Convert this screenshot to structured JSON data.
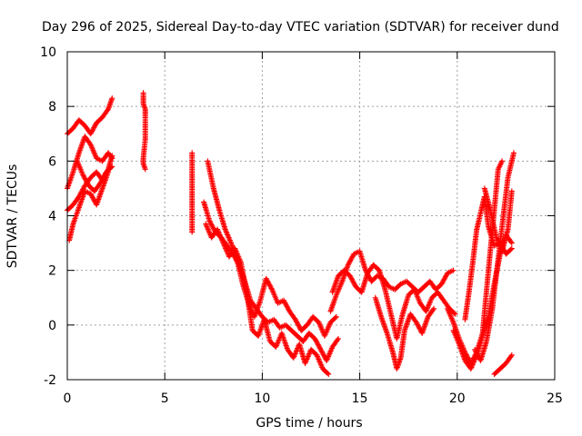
{
  "chart_data": {
    "type": "scatter",
    "title": "Day 296 of 2025, Sidereal Day-to-day VTEC variation (SDTVAR) for receiver dund",
    "xlabel": "GPS time / hours",
    "ylabel": "SDTVAR / TECUs",
    "xlim": [
      0,
      25
    ],
    "ylim": [
      -2,
      10
    ],
    "xticks": [
      0,
      5,
      10,
      15,
      20,
      25
    ],
    "yticks": [
      -2,
      0,
      2,
      4,
      6,
      8,
      10
    ],
    "xtick_labels": [
      "0",
      "5",
      "10",
      "15",
      "20",
      "25"
    ],
    "ytick_labels": [
      "-2",
      "0",
      "2",
      "4",
      "6",
      "8",
      "10"
    ],
    "grid": true,
    "marker": "+",
    "color": "#ff0000",
    "series": [
      {
        "name": "SDTVAR",
        "segments": [
          {
            "x": [
              0.0,
              0.3,
              0.6,
              0.9,
              1.2,
              1.5,
              1.8,
              2.1,
              2.3
            ],
            "y": [
              7.0,
              7.2,
              7.5,
              7.3,
              7.0,
              7.4,
              7.6,
              7.9,
              8.3
            ]
          },
          {
            "x": [
              0.0,
              0.3,
              0.6,
              0.9,
              1.2,
              1.5,
              1.8,
              2.1,
              2.3
            ],
            "y": [
              5.0,
              5.6,
              6.3,
              6.9,
              6.6,
              6.1,
              6.0,
              6.3,
              6.1
            ]
          },
          {
            "x": [
              0.0,
              0.3,
              0.6,
              0.9,
              1.2,
              1.5,
              1.8,
              2.1,
              2.3
            ],
            "y": [
              4.2,
              4.4,
              4.7,
              5.1,
              5.4,
              5.6,
              5.3,
              5.7,
              6.2
            ]
          },
          {
            "x": [
              0.1,
              0.3,
              0.6,
              0.9,
              1.2,
              1.5,
              1.8,
              2.1
            ],
            "y": [
              3.1,
              3.7,
              4.3,
              4.9,
              4.8,
              4.4,
              5.0,
              5.6
            ]
          },
          {
            "x": [
              0.5,
              0.8,
              1.1,
              1.4,
              1.7,
              2.0,
              2.3
            ],
            "y": [
              6.0,
              5.5,
              5.1,
              4.9,
              5.2,
              5.6,
              5.8
            ]
          },
          {
            "x": [
              3.9,
              3.9,
              3.9,
              4.0,
              4.0,
              4.0,
              4.0,
              3.9,
              3.9,
              4.0
            ],
            "y": [
              8.5,
              8.3,
              8.1,
              7.9,
              7.7,
              7.1,
              6.8,
              6.1,
              5.9,
              5.7
            ]
          },
          {
            "x": [
              6.4,
              6.4,
              6.4,
              6.4
            ],
            "y": [
              6.3,
              5.7,
              4.6,
              3.4
            ]
          },
          {
            "x": [
              7.0,
              7.3,
              7.6,
              7.9,
              8.2,
              8.5,
              8.8,
              9.1,
              9.4,
              9.7,
              10.0,
              10.3,
              10.6,
              10.9,
              11.2,
              11.5,
              11.8,
              12.1,
              12.4,
              12.7,
              13.0,
              13.3,
              13.6,
              13.9
            ],
            "y": [
              4.5,
              3.8,
              3.4,
              3.2,
              2.9,
              2.6,
              2.2,
              1.6,
              0.9,
              0.6,
              0.3,
              0.1,
              0.2,
              -0.1,
              0.0,
              -0.2,
              -0.4,
              -0.6,
              -0.3,
              -0.5,
              -0.9,
              -1.3,
              -0.8,
              -0.5
            ]
          },
          {
            "x": [
              7.2,
              7.5,
              7.8,
              8.1,
              8.4,
              8.7,
              9.0,
              9.3,
              9.6,
              9.9,
              10.2,
              10.5,
              10.8,
              11.1,
              11.4,
              11.7,
              12.0,
              12.3,
              12.6,
              12.9,
              13.2,
              13.5,
              13.8
            ],
            "y": [
              6.0,
              5.0,
              4.2,
              3.5,
              3.0,
              2.4,
              1.5,
              0.8,
              0.3,
              0.9,
              1.7,
              1.3,
              0.8,
              0.9,
              0.5,
              0.2,
              -0.2,
              0.0,
              0.3,
              0.1,
              -0.4,
              0.1,
              0.3
            ]
          },
          {
            "x": [
              7.1,
              7.4,
              7.7,
              8.0,
              8.3,
              8.6,
              8.9,
              9.2,
              9.5,
              9.8,
              10.1,
              10.4,
              10.7,
              11.0,
              11.3,
              11.6,
              11.9,
              12.2,
              12.5,
              12.8,
              13.1,
              13.4
            ],
            "y": [
              3.7,
              3.2,
              3.5,
              3.0,
              2.5,
              2.8,
              2.3,
              1.2,
              -0.2,
              -0.4,
              0.2,
              -0.6,
              -0.8,
              -0.3,
              -0.9,
              -1.2,
              -0.7,
              -1.4,
              -0.9,
              -1.1,
              -1.6,
              -1.8
            ]
          },
          {
            "x": [
              13.5,
              13.8,
              14.1,
              14.4,
              14.7,
              15.0,
              15.3,
              15.6,
              15.9,
              16.2,
              16.5,
              16.8,
              17.1,
              17.4,
              17.7,
              18.0,
              18.3,
              18.6,
              18.9,
              19.2,
              19.5,
              19.8
            ],
            "y": [
              0.5,
              1.1,
              1.6,
              2.2,
              2.6,
              2.7,
              2.0,
              1.6,
              1.8,
              1.7,
              1.4,
              1.3,
              1.5,
              1.6,
              1.4,
              1.2,
              1.4,
              1.6,
              1.3,
              1.5,
              1.9,
              2.0
            ]
          },
          {
            "x": [
              13.6,
              13.9,
              14.2,
              14.5,
              14.8,
              15.1,
              15.4,
              15.7,
              16.0,
              16.3,
              16.6,
              16.9,
              17.2,
              17.5,
              17.8,
              18.1,
              18.4,
              18.7,
              19.0,
              19.3,
              19.6,
              19.9
            ],
            "y": [
              1.2,
              1.8,
              2.0,
              1.8,
              1.4,
              1.2,
              1.9,
              2.2,
              2.0,
              1.3,
              0.4,
              -0.5,
              0.4,
              1.1,
              1.3,
              0.8,
              0.5,
              1.0,
              1.2,
              0.9,
              0.6,
              0.4
            ]
          },
          {
            "x": [
              15.8,
              16.1,
              16.4,
              16.7,
              16.9,
              17.1,
              17.3,
              17.6,
              17.9,
              18.2,
              18.5,
              18.8
            ],
            "y": [
              1.0,
              0.3,
              -0.3,
              -1.0,
              -1.6,
              -1.2,
              -0.2,
              0.4,
              0.1,
              -0.3,
              0.3,
              0.6
            ]
          },
          {
            "x": [
              19.5,
              19.8,
              20.1,
              20.4,
              20.7,
              21.0,
              21.3,
              21.6,
              21.9,
              22.1,
              22.3
            ],
            "y": [
              0.6,
              0.1,
              -0.5,
              -1.0,
              -1.4,
              -1.0,
              -0.3,
              2.0,
              4.2,
              5.7,
              6.0
            ]
          },
          {
            "x": [
              19.8,
              20.1,
              20.4,
              20.7,
              21.0,
              21.3,
              21.6,
              21.9,
              22.2,
              22.5,
              22.8
            ],
            "y": [
              -0.2,
              -0.7,
              -1.3,
              -1.6,
              -1.1,
              -0.4,
              0.3,
              1.5,
              2.6,
              3.3,
              3.0
            ]
          },
          {
            "x": [
              20.4,
              20.6,
              20.8,
              21.0,
              21.2,
              21.4,
              21.6,
              21.9,
              22.2,
              22.5,
              22.8
            ],
            "y": [
              0.2,
              1.2,
              2.3,
              3.5,
              4.1,
              4.7,
              3.6,
              2.9,
              3.0,
              2.6,
              2.8
            ]
          },
          {
            "x": [
              20.9,
              21.2,
              21.5,
              21.8,
              22.0,
              22.3,
              22.6,
              22.9
            ],
            "y": [
              -0.9,
              -1.3,
              -0.6,
              0.6,
              1.8,
              3.6,
              5.4,
              6.3
            ]
          },
          {
            "x": [
              21.4,
              21.7,
              22.0,
              22.3,
              22.6,
              22.8
            ],
            "y": [
              5.0,
              4.2,
              3.2,
              2.7,
              3.5,
              4.9
            ]
          },
          {
            "x": [
              21.9,
              22.2,
              22.5,
              22.8
            ],
            "y": [
              -1.8,
              -1.6,
              -1.4,
              -1.1
            ]
          }
        ]
      }
    ]
  }
}
